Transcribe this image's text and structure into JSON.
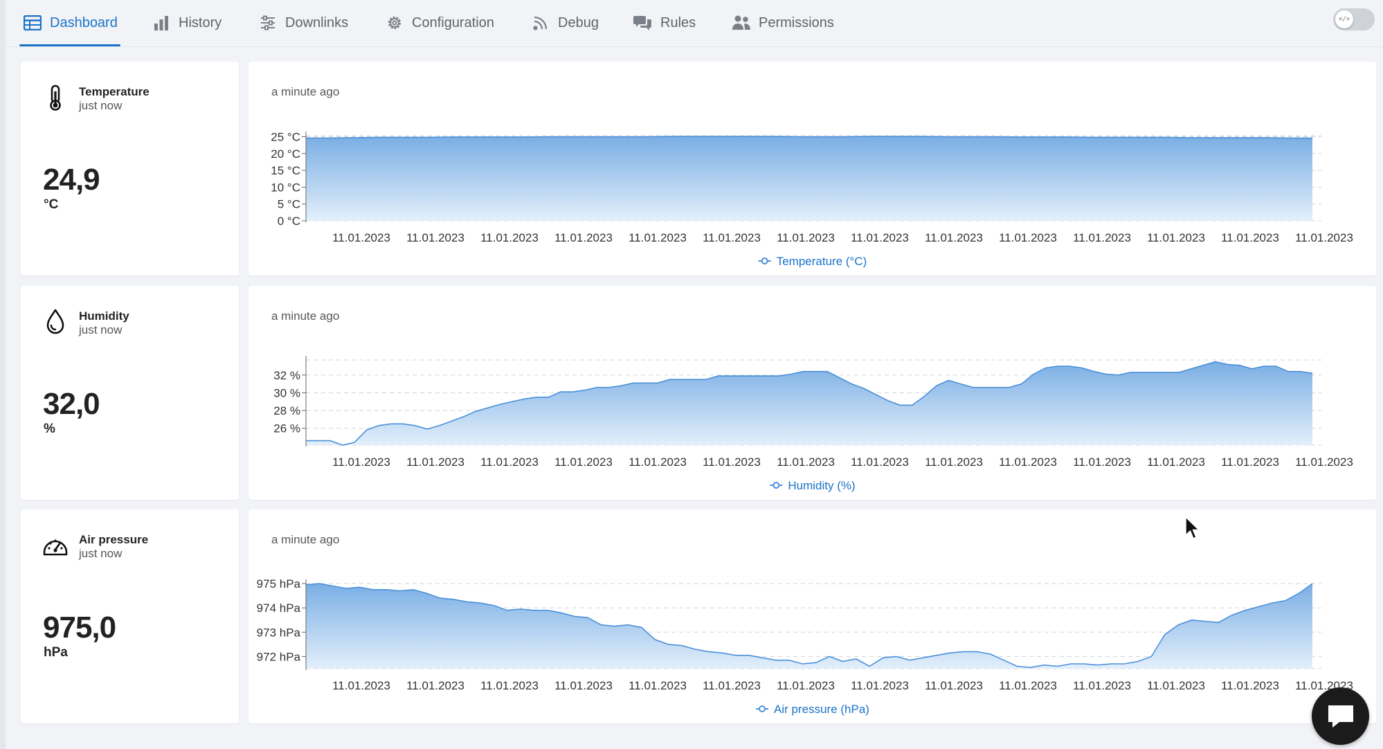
{
  "nav": {
    "tabs": [
      {
        "label": "Dashboard",
        "icon": "table-icon",
        "active": true
      },
      {
        "label": "History",
        "icon": "bar-chart-icon",
        "active": false
      },
      {
        "label": "Downlinks",
        "icon": "sliders-icon",
        "active": false
      },
      {
        "label": "Configuration",
        "icon": "gear-icon",
        "active": false
      },
      {
        "label": "Debug",
        "icon": "rss-icon",
        "active": false
      },
      {
        "label": "Rules",
        "icon": "chat-bubbles-icon",
        "active": false
      },
      {
        "label": "Permissions",
        "icon": "users-icon",
        "active": false
      }
    ],
    "toggle_icon": "code-icon"
  },
  "sensors": [
    {
      "name": "Temperature",
      "updated": "just now",
      "value": "24,9",
      "unit": "°C",
      "icon": "thermometer-icon"
    },
    {
      "name": "Humidity",
      "updated": "just now",
      "value": "32,0",
      "unit": "%",
      "icon": "droplet-icon"
    },
    {
      "name": "Air pressure",
      "updated": "just now",
      "value": "975,0",
      "unit": "hPa",
      "icon": "gauge-icon"
    }
  ],
  "charts": [
    {
      "updated": "a minute ago"
    },
    {
      "updated": "a minute ago"
    },
    {
      "updated": "a minute ago"
    }
  ],
  "colors": {
    "accent": "#1a73c8",
    "series": "#4a90d9",
    "fill_top": "#7aaee4",
    "fill_bottom": "#e3effb"
  },
  "chart_data": [
    {
      "type": "area",
      "title": "",
      "legend": "Temperature (°C)",
      "legend_position": "bottom",
      "grid": true,
      "x_tick_labels": [
        "11.01.2023",
        "11.01.2023",
        "11.01.2023",
        "11.01.2023",
        "11.01.2023",
        "11.01.2023",
        "11.01.2023",
        "11.01.2023",
        "11.01.2023",
        "11.01.2023",
        "11.01.2023",
        "11.01.2023",
        "11.01.2023",
        "11.01.2023"
      ],
      "y_ticks": [
        0,
        5,
        10,
        15,
        20,
        25
      ],
      "y_tick_labels": [
        "0 °C",
        "5 °C",
        "10 °C",
        "15 °C",
        "20 °C",
        "25 °C"
      ],
      "ylim": [
        0,
        25.3
      ],
      "series": [
        {
          "name": "Temperature (°C)",
          "values": [
            24.6,
            24.6,
            24.7,
            24.8,
            24.8,
            24.8,
            24.9,
            24.9,
            24.9,
            24.9,
            25.0,
            25.0,
            25.0,
            25.0,
            25.0,
            25.1,
            25.1,
            25.1,
            25.1,
            25.1,
            25.0,
            25.0,
            25.0,
            25.1,
            25.1,
            25.1,
            25.0,
            25.0,
            25.0,
            24.9,
            24.9,
            24.9,
            24.8,
            24.8,
            24.8,
            24.8,
            24.7,
            24.7,
            24.7,
            24.7,
            24.6,
            24.6
          ]
        }
      ]
    },
    {
      "type": "area",
      "title": "",
      "legend": "Humidity (%)",
      "legend_position": "bottom",
      "grid": true,
      "x_tick_labels": [
        "11.01.2023",
        "11.01.2023",
        "11.01.2023",
        "11.01.2023",
        "11.01.2023",
        "11.01.2023",
        "11.01.2023",
        "11.01.2023",
        "11.01.2023",
        "11.01.2023",
        "11.01.2023",
        "11.01.2023",
        "11.01.2023",
        "11.01.2023"
      ],
      "y_ticks": [
        26,
        28,
        30,
        32
      ],
      "y_tick_labels": [
        "26 %",
        "28 %",
        "30 %",
        "32 %"
      ],
      "ylim": [
        24.1,
        33.7
      ],
      "series": [
        {
          "name": "Humidity (%)",
          "values": [
            24.6,
            24.6,
            24.6,
            24.1,
            24.4,
            25.8,
            26.3,
            26.5,
            26.5,
            26.3,
            25.9,
            26.3,
            26.8,
            27.3,
            27.9,
            28.3,
            28.7,
            29.0,
            29.3,
            29.5,
            29.5,
            30.1,
            30.1,
            30.3,
            30.6,
            30.6,
            30.8,
            31.1,
            31.1,
            31.1,
            31.5,
            31.5,
            31.5,
            31.5,
            31.9,
            31.9,
            31.9,
            31.9,
            31.9,
            31.9,
            32.1,
            32.4,
            32.4,
            32.4,
            31.7,
            31.0,
            30.5,
            29.8,
            29.1,
            28.6,
            28.6,
            29.6,
            30.8,
            31.4,
            31.0,
            30.6,
            30.6,
            30.6,
            30.6,
            31.0,
            32.1,
            32.8,
            33.0,
            33.0,
            32.8,
            32.4,
            32.1,
            32.0,
            32.3,
            32.3,
            32.3,
            32.3,
            32.3,
            32.7,
            33.1,
            33.5,
            33.2,
            33.1,
            32.7,
            33.0,
            33.0,
            32.4,
            32.4,
            32.2
          ]
        }
      ]
    },
    {
      "type": "area",
      "title": "",
      "legend": "Air pressure (hPa)",
      "legend_position": "bottom",
      "grid": true,
      "x_tick_labels": [
        "11.01.2023",
        "11.01.2023",
        "11.01.2023",
        "11.01.2023",
        "11.01.2023",
        "11.01.2023",
        "11.01.2023",
        "11.01.2023",
        "11.01.2023",
        "11.01.2023",
        "11.01.2023",
        "11.01.2023",
        "11.01.2023",
        "11.01.2023"
      ],
      "y_ticks": [
        972,
        973,
        974,
        975
      ],
      "y_tick_labels": [
        "972 hPa",
        "973 hPa",
        "974 hPa",
        "975 hPa"
      ],
      "ylim": [
        971.5,
        975.0
      ],
      "series": [
        {
          "name": "Air pressure (hPa)",
          "values": [
            974.95,
            975.0,
            974.9,
            974.8,
            974.85,
            974.75,
            974.75,
            974.7,
            974.75,
            974.6,
            974.4,
            974.35,
            974.25,
            974.2,
            974.1,
            973.9,
            973.95,
            973.9,
            973.9,
            973.8,
            973.65,
            973.6,
            973.3,
            973.25,
            973.3,
            973.2,
            972.7,
            972.5,
            972.45,
            972.3,
            972.2,
            972.15,
            972.05,
            972.05,
            971.95,
            971.85,
            971.85,
            971.7,
            971.75,
            972.0,
            971.8,
            971.9,
            971.6,
            971.95,
            972.0,
            971.85,
            971.95,
            972.05,
            972.15,
            972.2,
            972.2,
            972.1,
            971.85,
            971.6,
            971.55,
            971.65,
            971.6,
            971.7,
            971.7,
            971.65,
            971.7,
            971.7,
            971.8,
            972.0,
            972.9,
            973.3,
            973.5,
            973.45,
            973.4,
            973.7,
            973.9,
            974.05,
            974.2,
            974.3,
            974.6,
            975.0
          ]
        }
      ]
    }
  ]
}
